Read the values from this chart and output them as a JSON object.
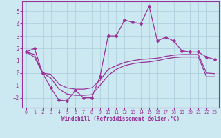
{
  "xlabel": "Windchill (Refroidissement éolien,°C)",
  "bg_color": "#cce8f0",
  "grid_color": "#aaccdd",
  "line_color": "#993399",
  "x_values": [
    0,
    1,
    2,
    3,
    4,
    5,
    6,
    7,
    8,
    9,
    10,
    11,
    12,
    13,
    14,
    15,
    16,
    17,
    18,
    19,
    20,
    21,
    22,
    23
  ],
  "series1": [
    1.7,
    2.0,
    0.0,
    -1.2,
    -2.2,
    -2.25,
    -1.4,
    -2.0,
    -2.0,
    -0.3,
    3.0,
    3.0,
    4.3,
    4.1,
    4.0,
    5.4,
    2.6,
    2.9,
    2.6,
    1.8,
    1.7,
    1.7,
    1.3,
    1.1
  ],
  "series2": [
    1.7,
    1.5,
    0.0,
    -0.1,
    -0.9,
    -1.2,
    -1.3,
    -1.3,
    -1.2,
    -0.6,
    0.3,
    0.6,
    0.85,
    1.0,
    1.1,
    1.15,
    1.2,
    1.35,
    1.45,
    1.5,
    1.5,
    1.5,
    0.0,
    -0.05
  ],
  "series3": [
    1.7,
    1.3,
    0.0,
    -0.4,
    -1.3,
    -1.7,
    -1.8,
    -1.8,
    -1.75,
    -1.0,
    -0.2,
    0.3,
    0.6,
    0.75,
    0.85,
    0.9,
    1.0,
    1.15,
    1.25,
    1.3,
    1.3,
    1.3,
    -0.3,
    -0.3
  ],
  "ylim": [
    -2.8,
    5.8
  ],
  "xlim": [
    -0.5,
    23.5
  ],
  "yticks": [
    -2,
    -1,
    0,
    1,
    2,
    3,
    4,
    5
  ],
  "xticks": [
    0,
    1,
    2,
    3,
    4,
    5,
    6,
    7,
    8,
    9,
    10,
    11,
    12,
    13,
    14,
    15,
    16,
    17,
    18,
    19,
    20,
    21,
    22,
    23
  ]
}
